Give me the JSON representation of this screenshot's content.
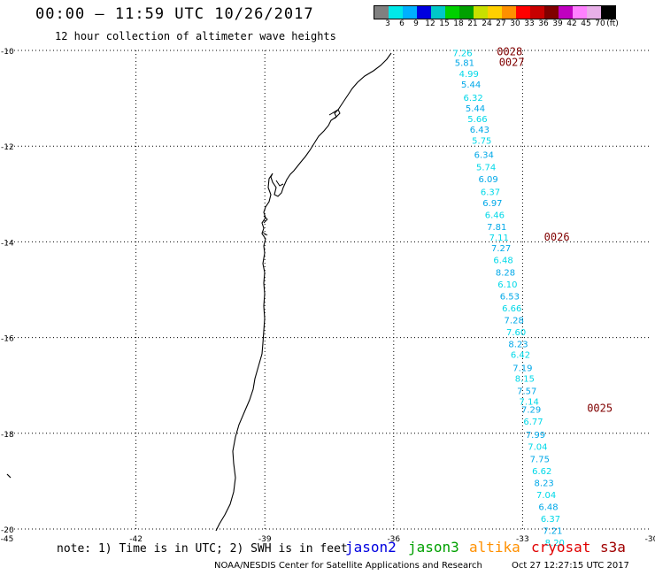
{
  "title": "00:00 — 11:59 UTC 10/26/2017",
  "subtitle": "12 hour collection of altimeter wave heights",
  "legend": {
    "swatches": [
      "#808080",
      "#00e8e8",
      "#00b0ff",
      "#0000e0",
      "#00c8c8",
      "#00d000",
      "#00a000",
      "#c8e000",
      "#ffd000",
      "#ff9000",
      "#ff0000",
      "#c80000",
      "#800000",
      "#c000c0",
      "#ff80ff",
      "#e8b0e8",
      "#000000"
    ],
    "labels": [
      "3",
      "6",
      "9",
      "12",
      "15",
      "18",
      "21",
      "24",
      "27",
      "30",
      "33",
      "36",
      "39",
      "42",
      "45",
      "70",
      "(ft)"
    ]
  },
  "map": {
    "lon_ticks": [
      "-45",
      "-42",
      "-39",
      "-36",
      "-33",
      "-30"
    ],
    "lat_ticks": [
      "-10",
      "-12",
      "-14",
      "-16",
      "-18",
      "-20"
    ],
    "lon_range": [
      -45,
      -30
    ],
    "lat_range": [
      -20,
      -10
    ]
  },
  "observations": [
    {
      "value": "7.26",
      "lon": -34.4,
      "lat": -10.12
    },
    {
      "value": "5.81",
      "lon": -34.35,
      "lat": -10.32
    },
    {
      "value": "4.99",
      "lon": -34.25,
      "lat": -10.55
    },
    {
      "value": "5.44",
      "lon": -34.2,
      "lat": -10.78
    },
    {
      "value": "6.32",
      "lon": -34.15,
      "lat": -11.05
    },
    {
      "value": "5.44",
      "lon": -34.1,
      "lat": -11.28
    },
    {
      "value": "5.66",
      "lon": -34.05,
      "lat": -11.5
    },
    {
      "value": "6.43",
      "lon": -34.0,
      "lat": -11.72
    },
    {
      "value": "5.75",
      "lon": -33.95,
      "lat": -11.95
    },
    {
      "value": "6.34",
      "lon": -33.9,
      "lat": -12.25
    },
    {
      "value": "5.74",
      "lon": -33.85,
      "lat": -12.5
    },
    {
      "value": "6.09",
      "lon": -33.8,
      "lat": -12.75
    },
    {
      "value": "6.37",
      "lon": -33.75,
      "lat": -13.02
    },
    {
      "value": "6.97",
      "lon": -33.7,
      "lat": -13.25
    },
    {
      "value": "6.46",
      "lon": -33.65,
      "lat": -13.5
    },
    {
      "value": "7.81",
      "lon": -33.6,
      "lat": -13.75
    },
    {
      "value": "7.11",
      "lon": -33.55,
      "lat": -13.97
    },
    {
      "value": "7.27",
      "lon": -33.5,
      "lat": -14.2
    },
    {
      "value": "6.48",
      "lon": -33.45,
      "lat": -14.45
    },
    {
      "value": "8.28",
      "lon": -33.4,
      "lat": -14.7
    },
    {
      "value": "6.10",
      "lon": -33.35,
      "lat": -14.95
    },
    {
      "value": "6.53",
      "lon": -33.3,
      "lat": -15.2
    },
    {
      "value": "6.66",
      "lon": -33.25,
      "lat": -15.45
    },
    {
      "value": "7.28",
      "lon": -33.2,
      "lat": -15.7
    },
    {
      "value": "7.60",
      "lon": -33.15,
      "lat": -15.95
    },
    {
      "value": "8.23",
      "lon": -33.1,
      "lat": -16.2
    },
    {
      "value": "6.42",
      "lon": -33.05,
      "lat": -16.42
    },
    {
      "value": "7.19",
      "lon": -33.0,
      "lat": -16.7
    },
    {
      "value": "8.15",
      "lon": -32.95,
      "lat": -16.92
    },
    {
      "value": "7.57",
      "lon": -32.9,
      "lat": -17.18
    },
    {
      "value": "7.14",
      "lon": -32.85,
      "lat": -17.4
    },
    {
      "value": "7.29",
      "lon": -32.8,
      "lat": -17.57
    },
    {
      "value": "6.77",
      "lon": -32.75,
      "lat": -17.82
    },
    {
      "value": "7.99",
      "lon": -32.7,
      "lat": -18.1
    },
    {
      "value": "7.04",
      "lon": -32.65,
      "lat": -18.35
    },
    {
      "value": "7.75",
      "lon": -32.6,
      "lat": -18.6
    },
    {
      "value": "6.62",
      "lon": -32.55,
      "lat": -18.85
    },
    {
      "value": "8.23",
      "lon": -32.5,
      "lat": -19.1
    },
    {
      "value": "7.04",
      "lon": -32.45,
      "lat": -19.35
    },
    {
      "value": "6.48",
      "lon": -32.4,
      "lat": -19.6
    },
    {
      "value": "6.37",
      "lon": -32.35,
      "lat": -19.85
    },
    {
      "value": "7.21",
      "lon": -32.3,
      "lat": -20.1
    },
    {
      "value": "8.20",
      "lon": -32.25,
      "lat": -20.35
    }
  ],
  "passes": [
    {
      "label": "0028",
      "lon": -33.6,
      "lat": -10.1
    },
    {
      "label": "0027",
      "lon": -33.55,
      "lat": -10.32
    },
    {
      "label": "0026",
      "lon": -32.5,
      "lat": -13.97
    },
    {
      "label": "0025",
      "lon": -31.5,
      "lat": -17.55
    }
  ],
  "colors": {
    "obs_light": "#00d8e8",
    "obs_blue": "#00a8e8",
    "pass": "#800000",
    "grid": "#000000"
  },
  "note": "note: 1) Time is in UTC; 2) SWH is in feet",
  "satellites": [
    {
      "name": "jason2",
      "color": "#0000e0"
    },
    {
      "name": "jason3",
      "color": "#00a000"
    },
    {
      "name": "altika",
      "color": "#ff9000"
    },
    {
      "name": "cryosat",
      "color": "#e00000"
    },
    {
      "name": "s3a",
      "color": "#a00000"
    }
  ],
  "footer": {
    "left": "NOAA/NESDIS Center for Satellite Applications and Research",
    "right": "Oct 27 12:27:15 UTC 2017"
  }
}
